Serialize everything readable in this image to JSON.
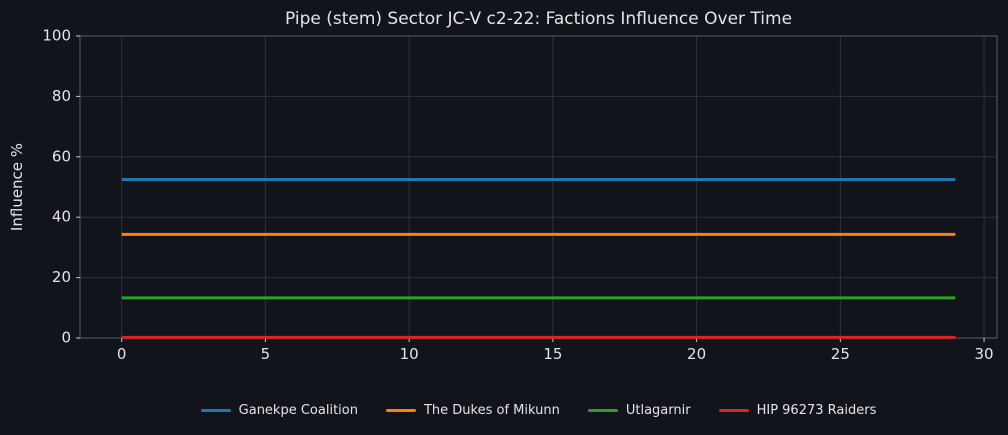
{
  "style": {
    "background": "#11141b",
    "text_color": "#e4e4e6",
    "grid_color": "#2f3339",
    "spine_color": "#5c6066",
    "tick_color": "#c7c7c9"
  },
  "chart_data": {
    "type": "line",
    "title": "Pipe (stem) Sector JC-V c2-22: Factions Influence Over Time",
    "xlabel": "",
    "ylabel": "Influence %",
    "x": [
      0,
      1,
      2,
      3,
      4,
      5,
      6,
      7,
      8,
      9,
      10,
      11,
      12,
      13,
      14,
      15,
      16,
      17,
      18,
      19,
      20,
      21,
      22,
      23,
      24,
      25,
      26,
      27,
      28,
      29
    ],
    "series": [
      {
        "name": "Ganekpe Coalition",
        "color": "#1f77b4",
        "values": [
          52.5,
          52.5,
          52.5,
          52.5,
          52.5,
          52.5,
          52.5,
          52.5,
          52.5,
          52.5,
          52.5,
          52.5,
          52.5,
          52.5,
          52.5,
          52.5,
          52.5,
          52.5,
          52.5,
          52.5,
          52.5,
          52.5,
          52.5,
          52.5,
          52.5,
          52.5,
          52.5,
          52.5,
          52.5,
          52.5
        ]
      },
      {
        "name": "The Dukes of Mikunn",
        "color": "#ff7f0e",
        "values": [
          34.3,
          34.3,
          34.3,
          34.3,
          34.3,
          34.3,
          34.3,
          34.3,
          34.3,
          34.3,
          34.3,
          34.3,
          34.3,
          34.3,
          34.3,
          34.3,
          34.3,
          34.3,
          34.3,
          34.3,
          34.3,
          34.3,
          34.3,
          34.3,
          34.3,
          34.3,
          34.3,
          34.3,
          34.3,
          34.3
        ]
      },
      {
        "name": "Utlagarnir",
        "color": "#2ca02c",
        "values": [
          13.3,
          13.3,
          13.3,
          13.3,
          13.3,
          13.3,
          13.3,
          13.3,
          13.3,
          13.3,
          13.3,
          13.3,
          13.3,
          13.3,
          13.3,
          13.3,
          13.3,
          13.3,
          13.3,
          13.3,
          13.3,
          13.3,
          13.3,
          13.3,
          13.3,
          13.3,
          13.3,
          13.3,
          13.3,
          13.3
        ]
      },
      {
        "name": "HIP 96273 Raiders",
        "color": "#d62728",
        "values": [
          0.2,
          0.2,
          0.2,
          0.2,
          0.2,
          0.2,
          0.2,
          0.2,
          0.2,
          0.2,
          0.2,
          0.2,
          0.2,
          0.2,
          0.2,
          0.2,
          0.2,
          0.2,
          0.2,
          0.2,
          0.2,
          0.2,
          0.2,
          0.2,
          0.2,
          0.2,
          0.2,
          0.2,
          0.2,
          0.2
        ]
      }
    ],
    "xticks": [
      0,
      5,
      10,
      15,
      20,
      25,
      30
    ],
    "yticks": [
      0,
      20,
      40,
      60,
      80,
      100
    ],
    "xlim": [
      -1.45,
      30.45
    ],
    "ylim": [
      0,
      100
    ],
    "grid": true,
    "legend_position": "bottom"
  }
}
